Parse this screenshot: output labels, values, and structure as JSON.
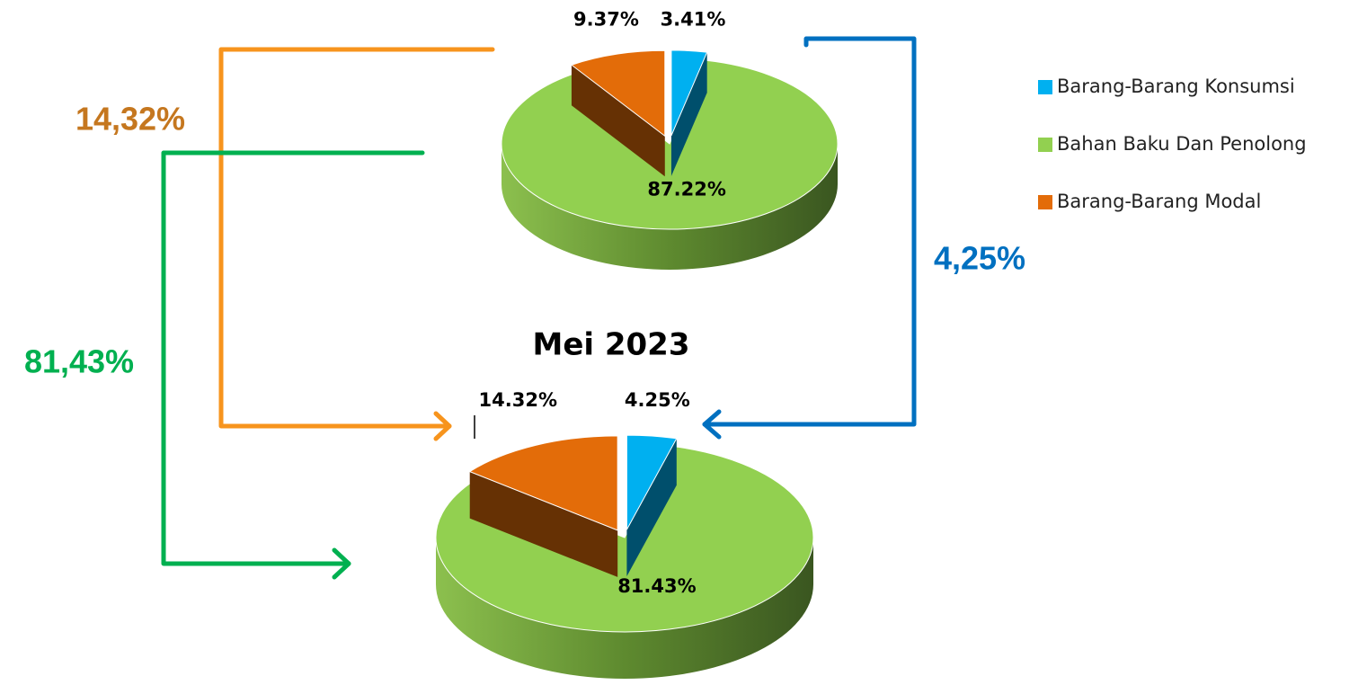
{
  "chart_data": [
    {
      "type": "pie",
      "categories": [
        "Barang-Barang Konsumsi",
        "Bahan Baku Dan Penolong",
        "Barang-Barang Modal"
      ],
      "values": [
        3.41,
        87.22,
        9.37
      ],
      "value_labels": [
        "3.41%",
        "87.22%",
        "9.37%"
      ],
      "colors": [
        "#00b0f0",
        "#92d050",
        "#e36c09"
      ]
    },
    {
      "type": "pie",
      "title": "Mei 2023",
      "categories": [
        "Barang-Barang Konsumsi",
        "Bahan Baku Dan Penolong",
        "Barang-Barang Modal"
      ],
      "values": [
        4.25,
        81.43,
        14.32
      ],
      "value_labels": [
        "4.25%",
        "81.43%",
        "14.32%"
      ],
      "colors": [
        "#00b0f0",
        "#92d050",
        "#e36c09"
      ]
    }
  ],
  "legend": "right",
  "annotations": [
    {
      "text": "14,32%",
      "color": "#c5771f"
    },
    {
      "text": "81,43%",
      "color": "#00b050"
    },
    {
      "text": "4,25%",
      "color": "#0070c0"
    }
  ]
}
